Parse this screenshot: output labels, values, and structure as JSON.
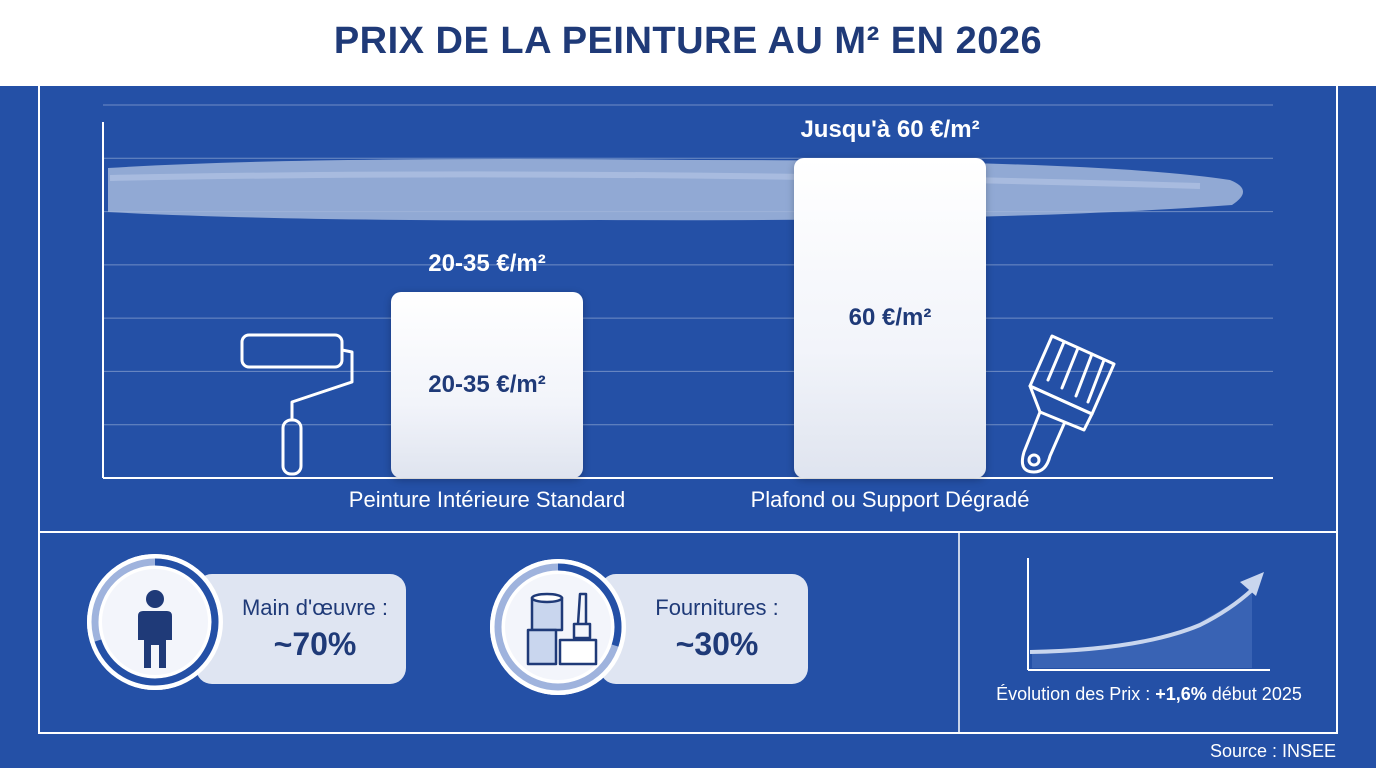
{
  "title": "PRIX DE LA PEINTURE AU M² EN 2026",
  "chart_data": {
    "type": "bar",
    "title": "PRIX DE LA PEINTURE AU M² EN 2026",
    "categories": [
      "Peinture Intérieure Standard",
      "Plafond ou Support Dégradé"
    ],
    "values": [
      35,
      60
    ],
    "ranges": [
      [
        20,
        35
      ],
      [
        60,
        60
      ]
    ],
    "top_labels": [
      "20-35 €/m²",
      "Jusqu'à 60 €/m²"
    ],
    "inner_labels": [
      "20-35 €/m²",
      "60 €/m²"
    ],
    "ylim": [
      0,
      70
    ],
    "grid": true
  },
  "breakdown": [
    {
      "label": "Main d'œuvre :",
      "value": "~70%",
      "share": 0.7,
      "icon": "worker-icon"
    },
    {
      "label": "Fournitures :",
      "value": "~30%",
      "share": 0.3,
      "icon": "paint-supplies-icon"
    }
  ],
  "evolution": {
    "prefix": "Évolution des Prix : ",
    "value": "+1,6%",
    "suffix": " début 2025",
    "icon": "rising-trend-icon"
  },
  "source": "Source : INSEE",
  "colors": {
    "background": "#2450a6",
    "title": "#1f3a78",
    "card": "#ffffff",
    "pill": "#dfe5f2"
  },
  "icons": {
    "left": "paint-roller-icon",
    "right": "paint-brush-icon"
  }
}
